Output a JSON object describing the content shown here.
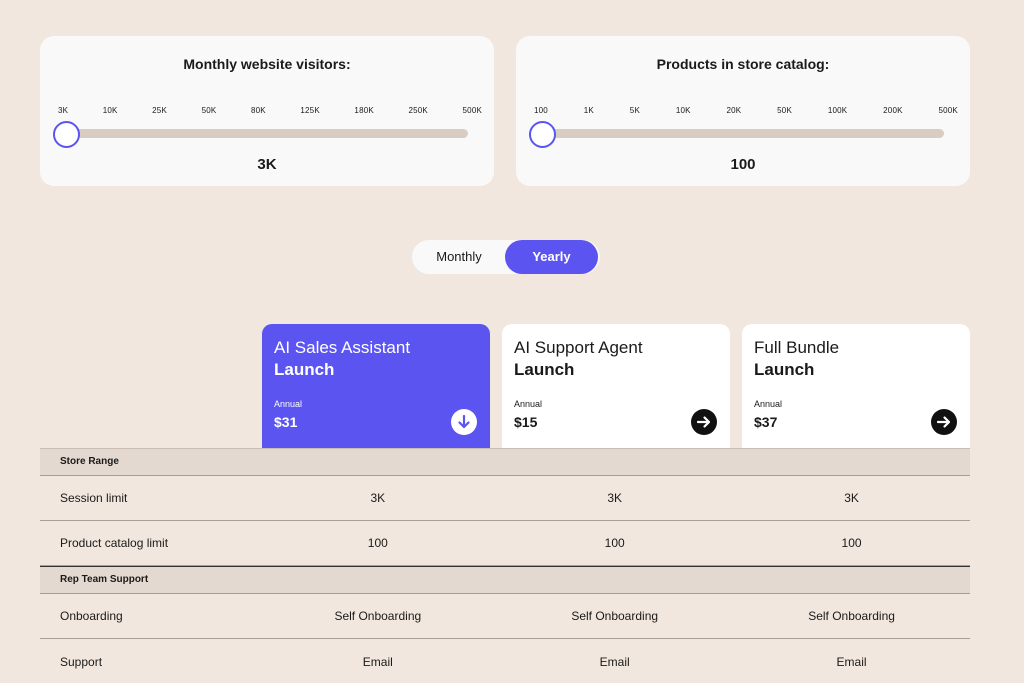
{
  "sliders": [
    {
      "title": "Monthly website visitors:",
      "ticks": [
        "3K",
        "10K",
        "25K",
        "50K",
        "80K",
        "125K",
        "180K",
        "250K",
        "500K"
      ],
      "value": "3K",
      "position_fraction": 0
    },
    {
      "title": "Products in store catalog:",
      "ticks": [
        "100",
        "1K",
        "5K",
        "10K",
        "20K",
        "50K",
        "100K",
        "200K",
        "500K"
      ],
      "value": "100",
      "position_fraction": 0
    }
  ],
  "billing_toggle": {
    "monthly_label": "Monthly",
    "yearly_label": "Yearly",
    "selected": "Yearly"
  },
  "plans": [
    {
      "name": "AI Sales Assistant",
      "tier": "Launch",
      "period": "Annual",
      "price": "$31",
      "icon": "arrow-down-circle-icon",
      "selected": true
    },
    {
      "name": "AI Support Agent",
      "tier": "Launch",
      "period": "Annual",
      "price": "$15",
      "icon": "arrow-right-circle-icon",
      "selected": false
    },
    {
      "name": "Full Bundle",
      "tier": "Launch",
      "period": "Annual",
      "price": "$37",
      "icon": "arrow-right-circle-icon",
      "selected": false
    }
  ],
  "table": {
    "sections": [
      {
        "title": "Store Range",
        "rows": [
          {
            "label": "Session limit",
            "values": [
              "3K",
              "3K",
              "3K"
            ]
          },
          {
            "label": "Product catalog limit",
            "values": [
              "100",
              "100",
              "100"
            ]
          }
        ]
      },
      {
        "title": "Rep Team Support",
        "rows": [
          {
            "label": "Onboarding",
            "values": [
              "Self Onboarding",
              "Self Onboarding",
              "Self Onboarding"
            ]
          },
          {
            "label": "Support",
            "values": [
              "Email",
              "Email",
              "Email"
            ]
          }
        ]
      }
    ]
  },
  "colors": {
    "background": "#f1e7de",
    "accent": "#5b54f0",
    "card": "#f9f9f9",
    "section_header": "#e4d9d1"
  }
}
